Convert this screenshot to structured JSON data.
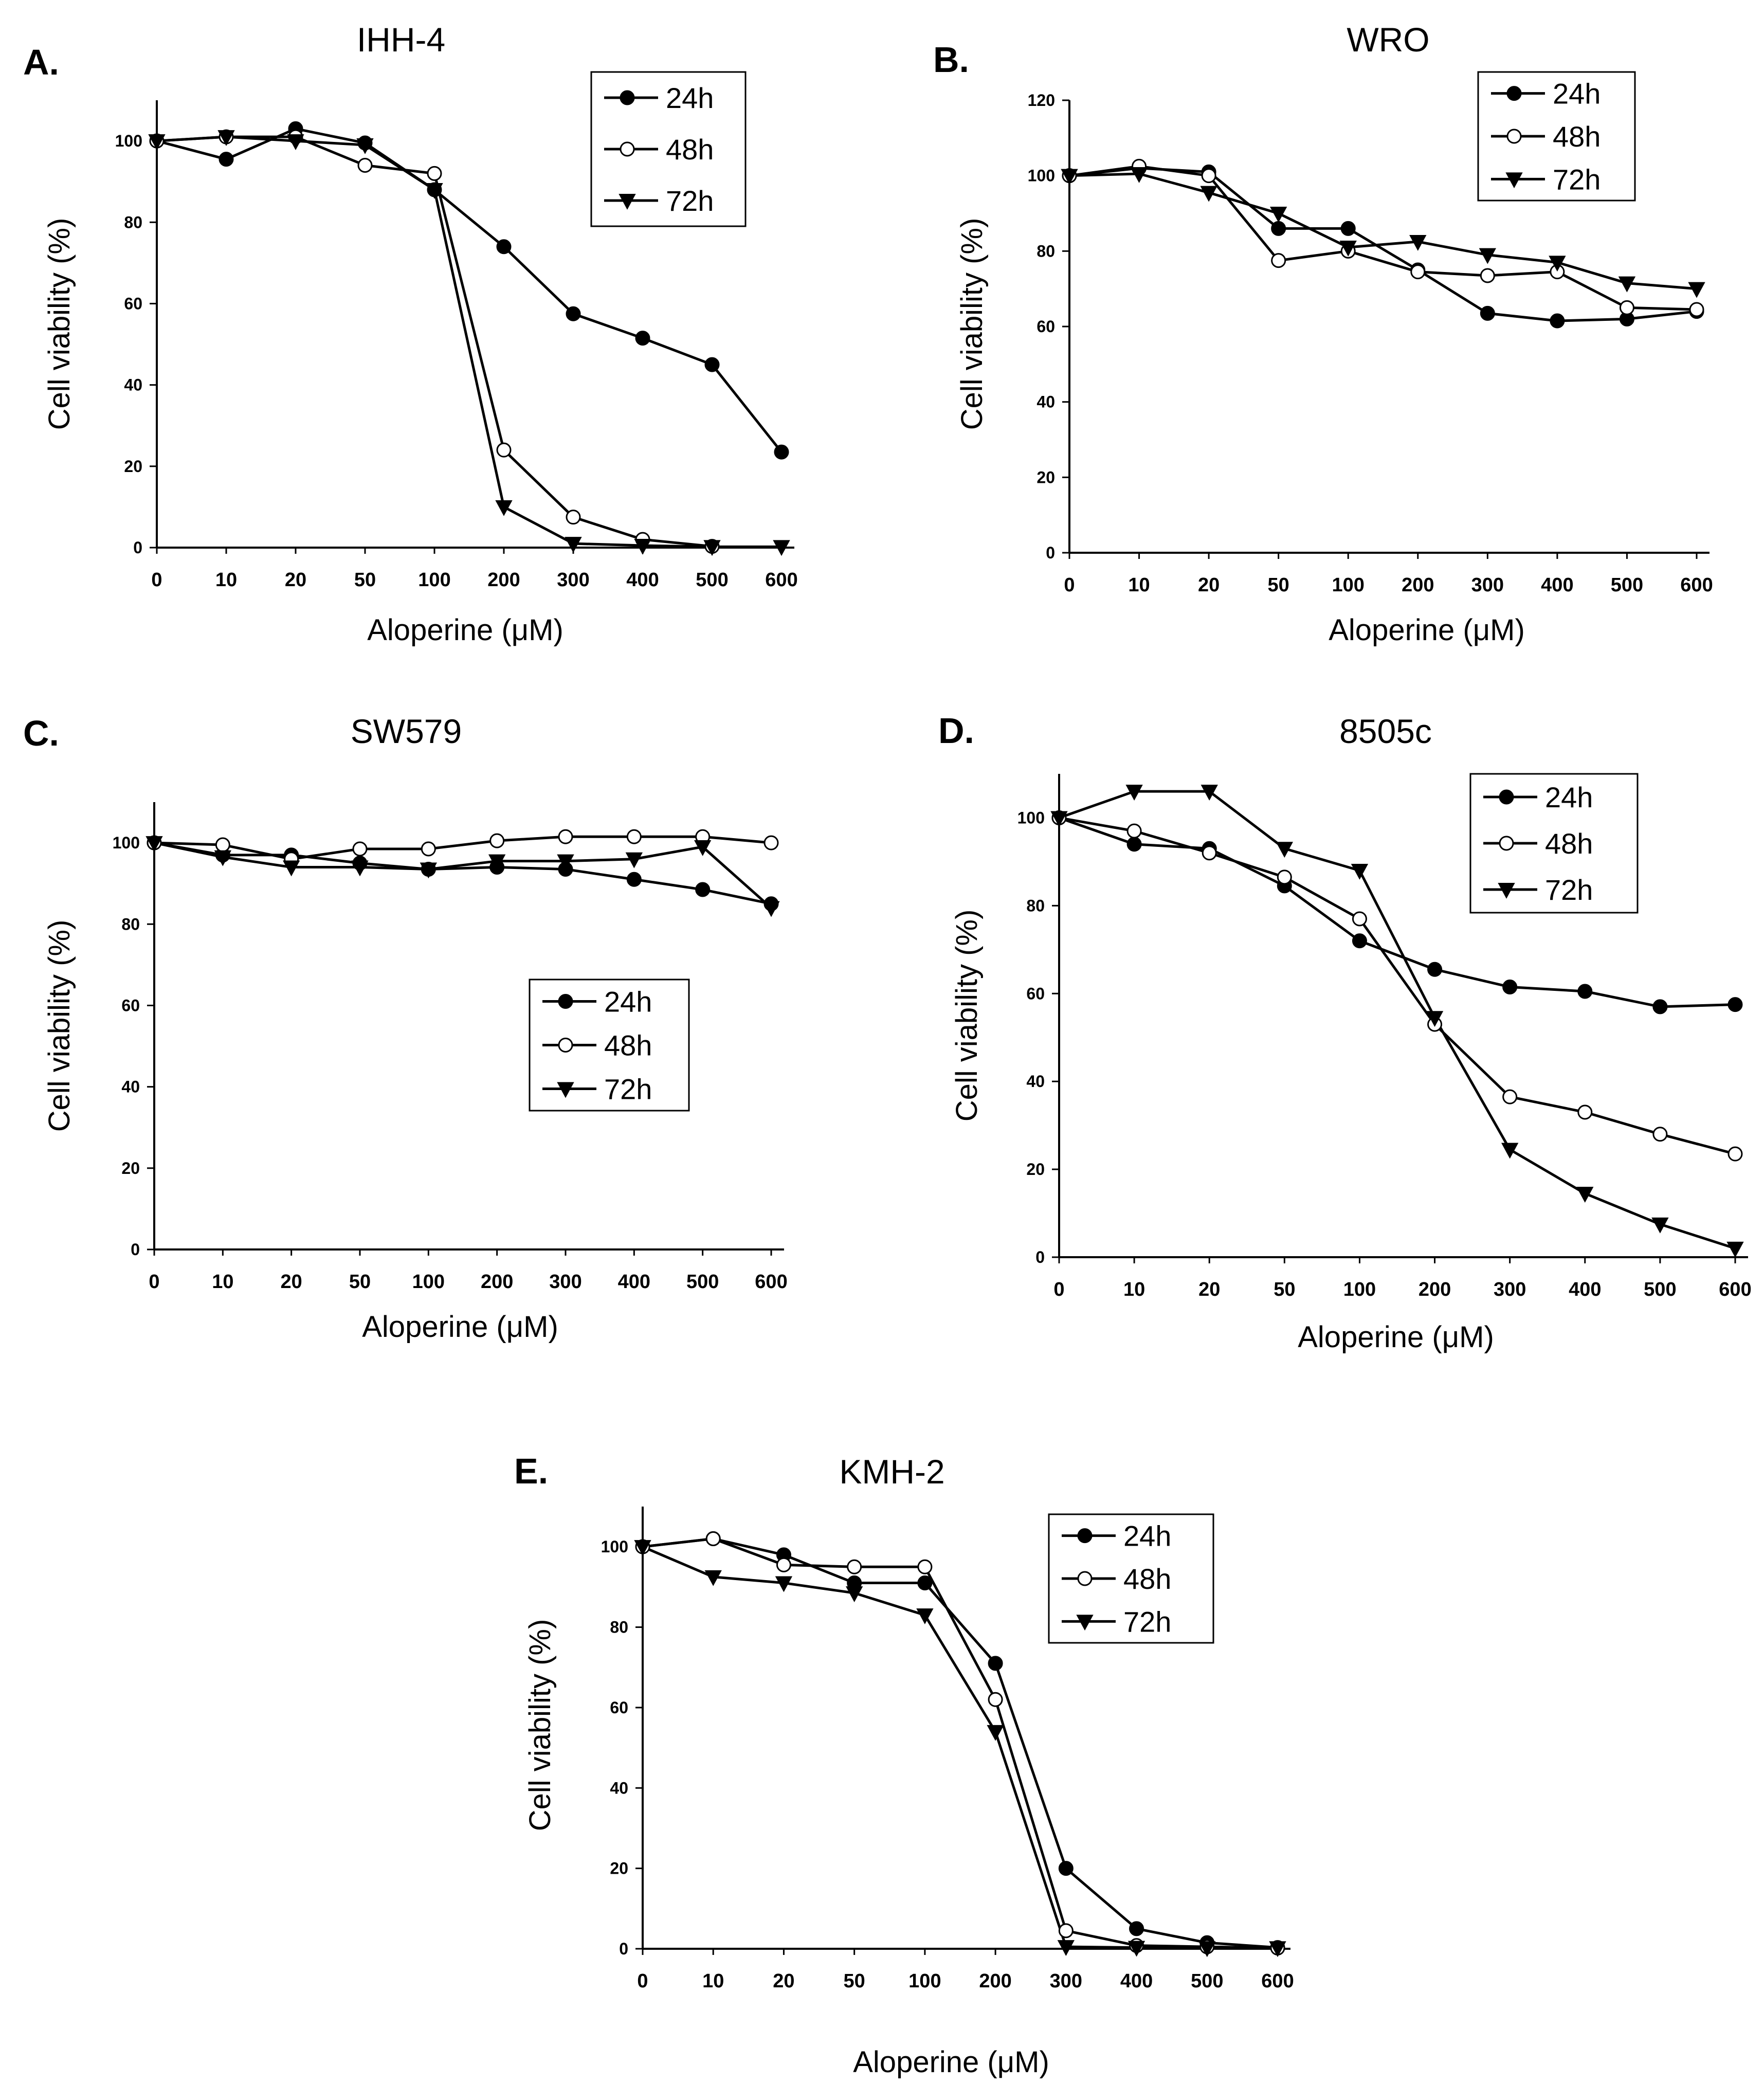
{
  "chart_data": [
    {
      "panel": "A.",
      "type": "line",
      "title": "IHH-4",
      "xlabel": "Aloperine (μM)",
      "ylabel": "Cell  viability (%)",
      "categories": [
        "0",
        "10",
        "20",
        "50",
        "100",
        "200",
        "300",
        "400",
        "500",
        "600"
      ],
      "ylim": [
        0,
        110
      ],
      "yticks": [
        0,
        20,
        40,
        60,
        80,
        100
      ],
      "legend_position": "top-right",
      "series": [
        {
          "name": "24h",
          "marker": "circle",
          "values": [
            100,
            95.5,
            103,
            99.5,
            88,
            74,
            57.5,
            51.5,
            45,
            23.5
          ]
        },
        {
          "name": "48h",
          "marker": "open-circle",
          "values": [
            100,
            101,
            101,
            94,
            92,
            24,
            7.5,
            2,
            0.3,
            null
          ]
        },
        {
          "name": "72h",
          "marker": "triangle-down",
          "values": [
            100,
            101,
            100,
            99,
            88,
            10,
            1,
            0.5,
            0.2,
            0.2
          ]
        }
      ]
    },
    {
      "panel": "B.",
      "type": "line",
      "title": "WRO",
      "xlabel": "Aloperine (μM)",
      "ylabel": "Cell  viability (%)",
      "categories": [
        "0",
        "10",
        "20",
        "50",
        "100",
        "200",
        "300",
        "400",
        "500",
        "600"
      ],
      "ylim": [
        0,
        120
      ],
      "yticks": [
        0,
        20,
        40,
        60,
        80,
        100,
        120
      ],
      "legend_position": "top-right",
      "series": [
        {
          "name": "24h",
          "marker": "circle",
          "values": [
            100,
            102,
            101,
            86,
            86,
            75,
            63.5,
            61.5,
            62,
            64
          ]
        },
        {
          "name": "48h",
          "marker": "open-circle",
          "values": [
            100,
            102.5,
            100,
            77.5,
            80,
            74.5,
            73.5,
            74.5,
            65,
            64.5
          ]
        },
        {
          "name": "72h",
          "marker": "triangle-down",
          "values": [
            100,
            100.5,
            95.5,
            90,
            81,
            82.5,
            79,
            77,
            71.5,
            70
          ]
        }
      ]
    },
    {
      "panel": "C.",
      "type": "line",
      "title": "SW579",
      "xlabel": "Aloperine (μM)",
      "ylabel": "Cell  viability (%)",
      "categories": [
        "0",
        "10",
        "20",
        "50",
        "100",
        "200",
        "300",
        "400",
        "500",
        "600"
      ],
      "ylim": [
        0,
        110
      ],
      "yticks": [
        0,
        20,
        40,
        60,
        80,
        100
      ],
      "legend_position": "center-right",
      "series": [
        {
          "name": "24h",
          "marker": "circle",
          "values": [
            100,
            97,
            97,
            95,
            93.5,
            94,
            93.5,
            91,
            88.5,
            85
          ]
        },
        {
          "name": "48h",
          "marker": "open-circle",
          "values": [
            100,
            99.5,
            96,
            98.5,
            98.5,
            100.5,
            101.5,
            101.5,
            101.5,
            100
          ]
        },
        {
          "name": "72h",
          "marker": "triangle-down",
          "values": [
            100,
            96.5,
            94,
            94,
            93.5,
            95.5,
            95.5,
            96,
            99,
            84
          ]
        }
      ]
    },
    {
      "panel": "D.",
      "type": "line",
      "title": "8505c",
      "xlabel": "Aloperine (μM)",
      "ylabel": "Cell  viability (%)",
      "categories": [
        "0",
        "10",
        "20",
        "50",
        "100",
        "200",
        "300",
        "400",
        "500",
        "600"
      ],
      "ylim": [
        0,
        110
      ],
      "yticks": [
        0,
        20,
        40,
        60,
        80,
        100
      ],
      "legend_position": "top-right",
      "series": [
        {
          "name": "24h",
          "marker": "circle",
          "values": [
            100,
            94,
            93,
            84.5,
            72,
            65.5,
            61.5,
            60.5,
            57,
            57.5
          ]
        },
        {
          "name": "48h",
          "marker": "open-circle",
          "values": [
            100,
            97,
            92,
            86.5,
            77,
            53,
            36.5,
            33,
            28,
            23.5
          ]
        },
        {
          "name": "72h",
          "marker": "triangle-down",
          "values": [
            100,
            106,
            106,
            93,
            88,
            54.5,
            24.5,
            14.5,
            7.5,
            2
          ]
        }
      ]
    },
    {
      "panel": "E.",
      "type": "line",
      "title": "KMH-2",
      "xlabel": "Aloperine (μM)",
      "ylabel": "Cell  viability (%)",
      "categories": [
        "0",
        "10",
        "20",
        "50",
        "100",
        "200",
        "300",
        "400",
        "500",
        "600"
      ],
      "ylim": [
        0,
        110
      ],
      "yticks": [
        0,
        20,
        40,
        60,
        80,
        100
      ],
      "legend_position": "top-right",
      "series": [
        {
          "name": "24h",
          "marker": "circle",
          "values": [
            100,
            102,
            98,
            91,
            91,
            71,
            20,
            5,
            1.5,
            0.3
          ]
        },
        {
          "name": "48h",
          "marker": "open-circle",
          "values": [
            100,
            102,
            95.5,
            95,
            95,
            62,
            4.5,
            0.8,
            0.5,
            0.2
          ]
        },
        {
          "name": "72h",
          "marker": "triangle-down",
          "values": [
            100,
            92.5,
            91,
            88.5,
            83,
            54,
            0.5,
            0.3,
            0.2,
            0.2
          ]
        }
      ]
    }
  ]
}
